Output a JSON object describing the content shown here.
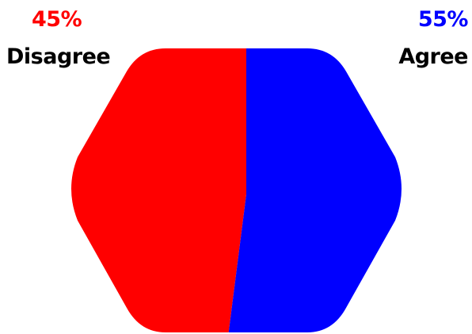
{
  "chart_data": {
    "type": "pie",
    "shape": "hexagon",
    "slices": [
      {
        "label": "Disagree",
        "value": 45,
        "display": "45%",
        "color": "#ff0000"
      },
      {
        "label": "Agree",
        "value": 55,
        "display": "55%",
        "color": "#0000ff"
      }
    ]
  }
}
